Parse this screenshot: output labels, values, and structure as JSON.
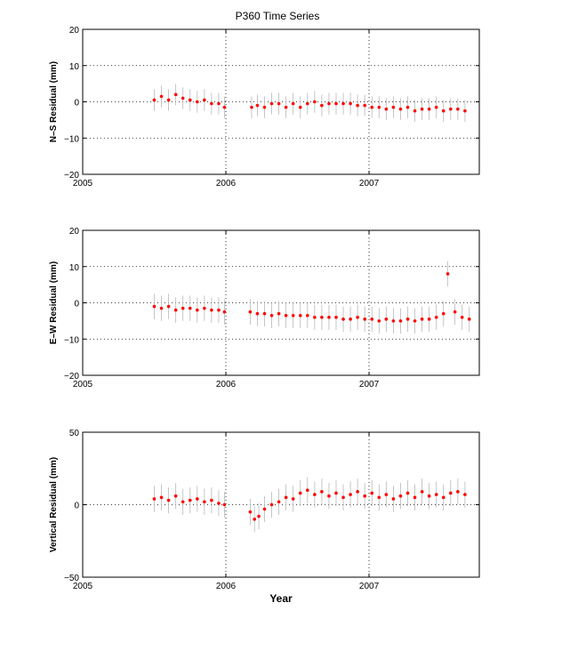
{
  "figure": {
    "title": "P360 Time Series"
  },
  "chart_data": [
    {
      "type": "scatter",
      "ylabel": "N–S Residual (mm)",
      "xlabel": "",
      "xlim": [
        2005,
        2007.77
      ],
      "ylim": [
        -20,
        20
      ],
      "xticks": [
        2005,
        2006,
        2007
      ],
      "xtick_labels": [
        "2005",
        "2006",
        "2007"
      ],
      "yticks": [
        -20,
        -10,
        0,
        10,
        20
      ],
      "ytick_labels": [
        "−20",
        "−10",
        "0",
        "10",
        "20"
      ],
      "grid": true,
      "series": [
        {
          "color": "#ff0000",
          "error_color": "#b8b8b8",
          "error_band": 3,
          "x": [
            2005.5,
            2005.55,
            2005.6,
            2005.65,
            2005.7,
            2005.75,
            2005.8,
            2005.85,
            2005.9,
            2005.95,
            2005.99,
            2006.18,
            2006.22,
            2006.27,
            2006.32,
            2006.37,
            2006.42,
            2006.47,
            2006.52,
            2006.57,
            2006.62,
            2006.67,
            2006.72,
            2006.77,
            2006.82,
            2006.87,
            2006.92,
            2006.97,
            2007.02,
            2007.07,
            2007.12,
            2007.17,
            2007.22,
            2007.27,
            2007.32,
            2007.37,
            2007.42,
            2007.47,
            2007.52,
            2007.57,
            2007.62,
            2007.67
          ],
          "y": [
            0.5,
            1.5,
            0.5,
            2.0,
            1.0,
            0.5,
            0.0,
            0.5,
            -0.5,
            -0.5,
            -1.5,
            -1.5,
            -1.0,
            -1.5,
            -0.5,
            -0.5,
            -1.5,
            -0.5,
            -1.5,
            -0.5,
            0.0,
            -1.0,
            -0.5,
            -0.5,
            -0.5,
            -0.5,
            -1.0,
            -1.0,
            -1.5,
            -1.5,
            -2.0,
            -1.5,
            -2.0,
            -1.5,
            -2.5,
            -2.0,
            -2.0,
            -1.5,
            -2.5,
            -2.0,
            -2.0,
            -2.5
          ]
        }
      ]
    },
    {
      "type": "scatter",
      "ylabel": "E–W Residual (mm)",
      "xlabel": "",
      "xlim": [
        2005,
        2007.77
      ],
      "ylim": [
        -20,
        20
      ],
      "xticks": [
        2005,
        2006,
        2007
      ],
      "xtick_labels": [
        "2005",
        "2006",
        "2007"
      ],
      "yticks": [
        -20,
        -10,
        0,
        10,
        20
      ],
      "ytick_labels": [
        "−20",
        "−10",
        "0",
        "10",
        "20"
      ],
      "grid": true,
      "series": [
        {
          "color": "#ff0000",
          "error_color": "#b8b8b8",
          "error_band": 3.5,
          "x": [
            2005.5,
            2005.55,
            2005.6,
            2005.65,
            2005.7,
            2005.75,
            2005.8,
            2005.85,
            2005.9,
            2005.95,
            2005.99,
            2006.17,
            2006.22,
            2006.27,
            2006.32,
            2006.37,
            2006.42,
            2006.47,
            2006.52,
            2006.57,
            2006.62,
            2006.67,
            2006.72,
            2006.77,
            2006.82,
            2006.87,
            2006.92,
            2006.97,
            2007.02,
            2007.07,
            2007.12,
            2007.17,
            2007.22,
            2007.27,
            2007.32,
            2007.37,
            2007.42,
            2007.47,
            2007.52,
            2007.55,
            2007.6,
            2007.65,
            2007.7
          ],
          "y": [
            -1.0,
            -1.5,
            -1.0,
            -2.0,
            -1.5,
            -1.5,
            -2.0,
            -1.5,
            -2.0,
            -2.0,
            -2.5,
            -2.5,
            -3.0,
            -3.0,
            -3.5,
            -3.0,
            -3.5,
            -3.5,
            -3.5,
            -3.5,
            -4.0,
            -4.0,
            -4.0,
            -4.0,
            -4.5,
            -4.5,
            -4.0,
            -4.5,
            -4.5,
            -5.0,
            -4.5,
            -5.0,
            -5.0,
            -4.5,
            -5.0,
            -4.5,
            -4.5,
            -4.0,
            -3.0,
            8.0,
            -2.5,
            -4.0,
            -4.5
          ]
        }
      ]
    },
    {
      "type": "scatter",
      "ylabel": "Vertical Residual (mm)",
      "xlabel": "Year",
      "xlim": [
        2005,
        2007.77
      ],
      "ylim": [
        -50,
        50
      ],
      "xticks": [
        2005,
        2006,
        2007
      ],
      "xtick_labels": [
        "2005",
        "2006",
        "2007"
      ],
      "yticks": [
        -50,
        0,
        50
      ],
      "ytick_labels": [
        "−50",
        "0",
        "50"
      ],
      "grid": true,
      "series": [
        {
          "color": "#ff0000",
          "error_color": "#b8b8b8",
          "error_band": 9,
          "x": [
            2005.5,
            2005.55,
            2005.6,
            2005.65,
            2005.7,
            2005.75,
            2005.8,
            2005.85,
            2005.9,
            2005.95,
            2005.99,
            2006.17,
            2006.2,
            2006.23,
            2006.27,
            2006.32,
            2006.37,
            2006.42,
            2006.47,
            2006.52,
            2006.57,
            2006.62,
            2006.67,
            2006.72,
            2006.77,
            2006.82,
            2006.87,
            2006.92,
            2006.97,
            2007.02,
            2007.07,
            2007.12,
            2007.17,
            2007.22,
            2007.27,
            2007.32,
            2007.37,
            2007.42,
            2007.47,
            2007.52,
            2007.57,
            2007.62,
            2007.67
          ],
          "y": [
            4,
            5,
            3,
            6,
            2,
            3,
            4,
            2,
            3,
            1,
            0,
            -5,
            -10,
            -8,
            -3,
            0,
            2,
            5,
            4,
            8,
            10,
            7,
            9,
            6,
            8,
            5,
            7,
            9,
            6,
            8,
            5,
            7,
            4,
            6,
            8,
            5,
            9,
            6,
            7,
            5,
            8,
            9,
            7
          ]
        }
      ]
    }
  ]
}
